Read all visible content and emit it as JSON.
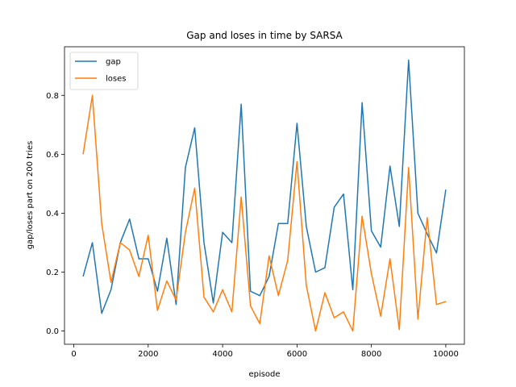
{
  "chart_data": {
    "type": "line",
    "title": "Gap and loses in time by SARSA",
    "xlabel": "episode",
    "ylabel": "gap/loses part on 200 tries",
    "xlim": [
      -250,
      10500
    ],
    "ylim": [
      -0.045,
      0.965
    ],
    "xticks": [
      0,
      2000,
      4000,
      6000,
      8000,
      10000
    ],
    "yticks": [
      0.0,
      0.2,
      0.4,
      0.6,
      0.8
    ],
    "xtick_labels": [
      "0",
      "2000",
      "4000",
      "6000",
      "8000",
      "10000"
    ],
    "ytick_labels": [
      "0.0",
      "0.2",
      "0.4",
      "0.6",
      "0.8"
    ],
    "grid": false,
    "legend_position": "upper-left",
    "x": [
      250,
      500,
      750,
      1000,
      1250,
      1500,
      1750,
      2000,
      2250,
      2500,
      2750,
      3000,
      3250,
      3500,
      3750,
      4000,
      4250,
      4500,
      4750,
      5000,
      5250,
      5500,
      5750,
      6000,
      6250,
      6500,
      6750,
      7000,
      7250,
      7500,
      7750,
      8000,
      8250,
      8500,
      8750,
      9000,
      9250,
      9500,
      9750,
      10000
    ],
    "series": [
      {
        "name": "gap",
        "color": "#1f77b4",
        "values": [
          0.185,
          0.3,
          0.06,
          0.14,
          0.3,
          0.38,
          0.245,
          0.245,
          0.135,
          0.315,
          0.09,
          0.555,
          0.69,
          0.3,
          0.095,
          0.335,
          0.3,
          0.77,
          0.135,
          0.12,
          0.185,
          0.365,
          0.365,
          0.705,
          0.355,
          0.2,
          0.215,
          0.42,
          0.465,
          0.14,
          0.775,
          0.34,
          0.285,
          0.56,
          0.355,
          0.92,
          0.4,
          0.33,
          0.265,
          0.48
        ]
      },
      {
        "name": "loses",
        "color": "#ff7f0e",
        "values": [
          0.6,
          0.8,
          0.365,
          0.165,
          0.3,
          0.275,
          0.185,
          0.325,
          0.07,
          0.17,
          0.105,
          0.335,
          0.485,
          0.115,
          0.065,
          0.14,
          0.065,
          0.455,
          0.085,
          0.025,
          0.255,
          0.12,
          0.24,
          0.575,
          0.155,
          0.0,
          0.13,
          0.045,
          0.065,
          0.0,
          0.39,
          0.195,
          0.05,
          0.245,
          0.005,
          0.555,
          0.04,
          0.385,
          0.09,
          0.1
        ]
      }
    ]
  }
}
